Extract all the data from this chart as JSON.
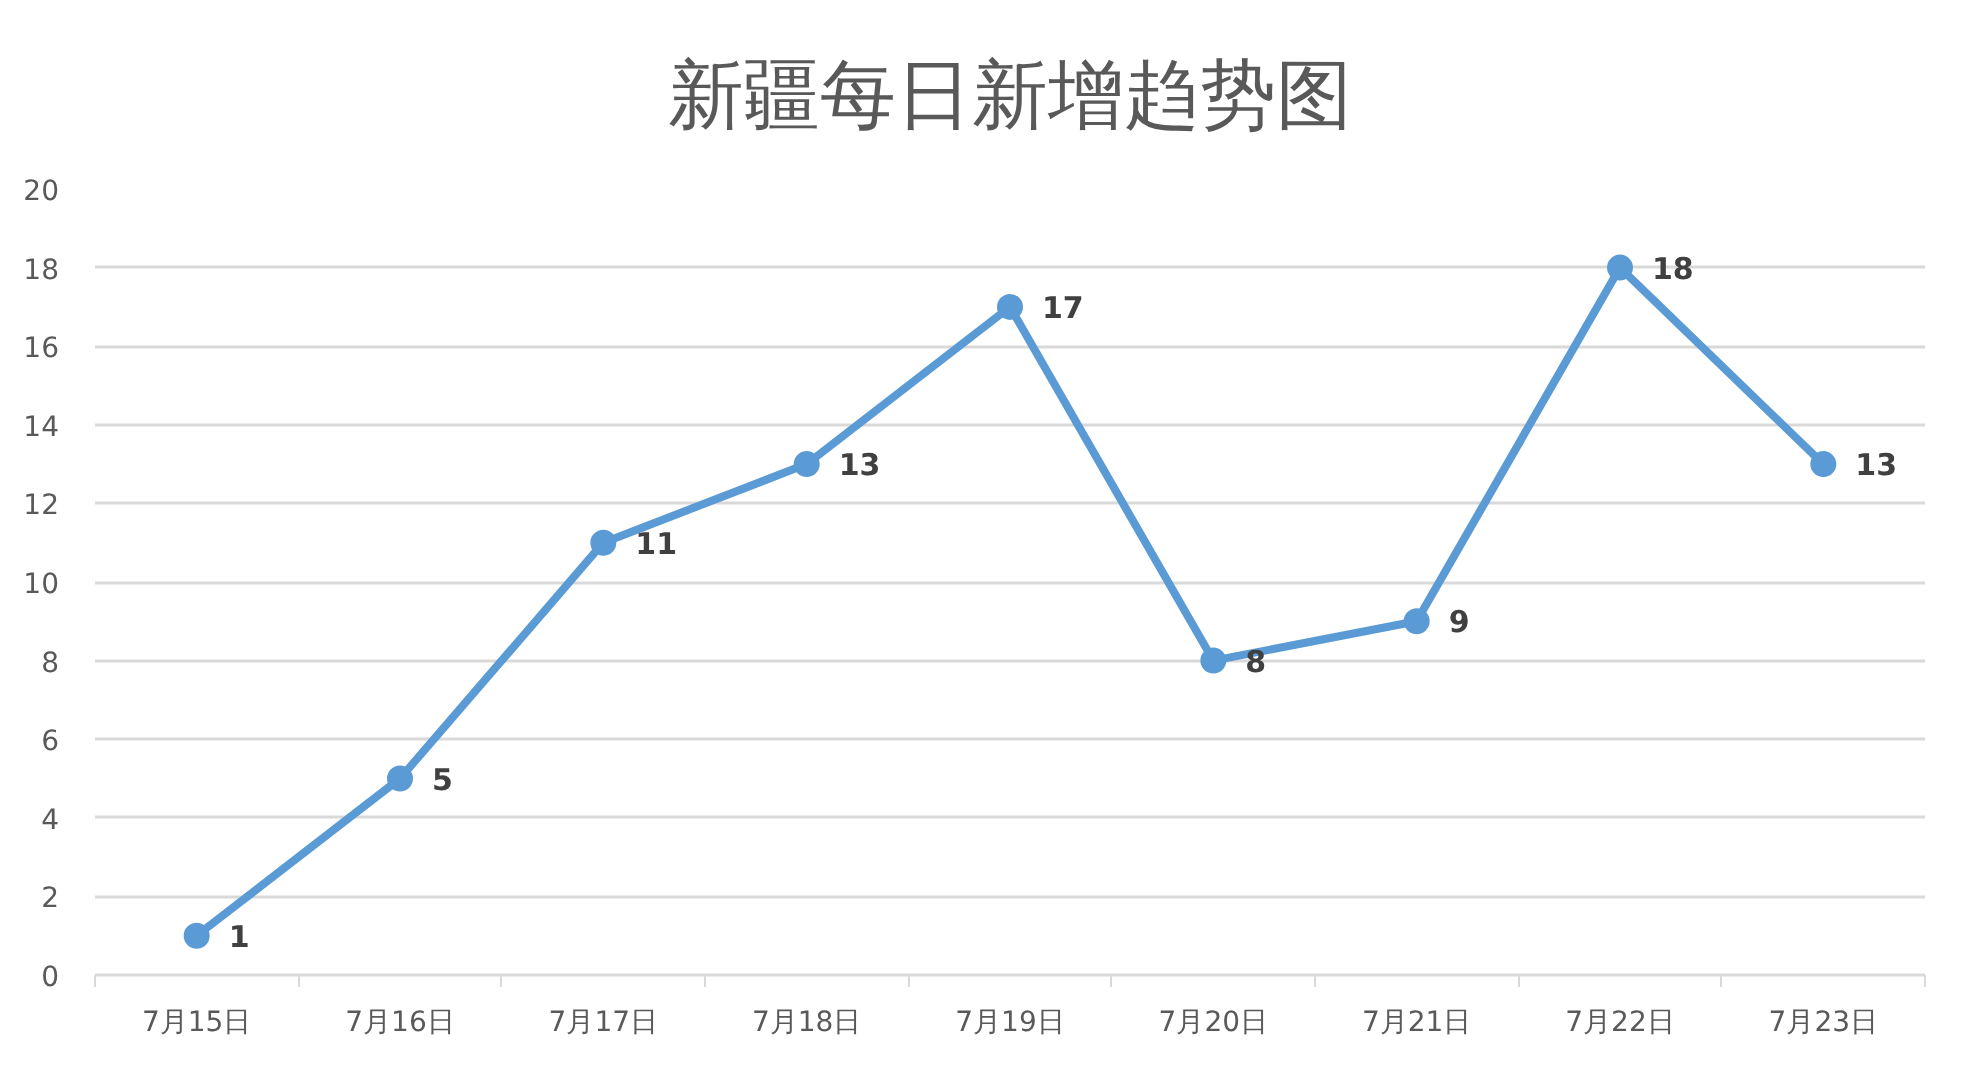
{
  "chart_data": {
    "type": "line",
    "title": "新疆每日新增趋势图",
    "categories": [
      "7月15日",
      "7月16日",
      "7月17日",
      "7月18日",
      "7月19日",
      "7月20日",
      "7月21日",
      "7月22日",
      "7月23日"
    ],
    "series": [
      {
        "color": "#5b9bd5",
        "values": [
          1,
          5,
          11,
          13,
          17,
          8,
          9,
          18,
          13
        ]
      }
    ],
    "ylim": [
      0,
      20
    ],
    "yticks": [
      0,
      2,
      4,
      6,
      8,
      10,
      12,
      14,
      16,
      18,
      20
    ],
    "grid": "y",
    "marker": "circle",
    "line_style": "solid",
    "data_labels": true
  }
}
